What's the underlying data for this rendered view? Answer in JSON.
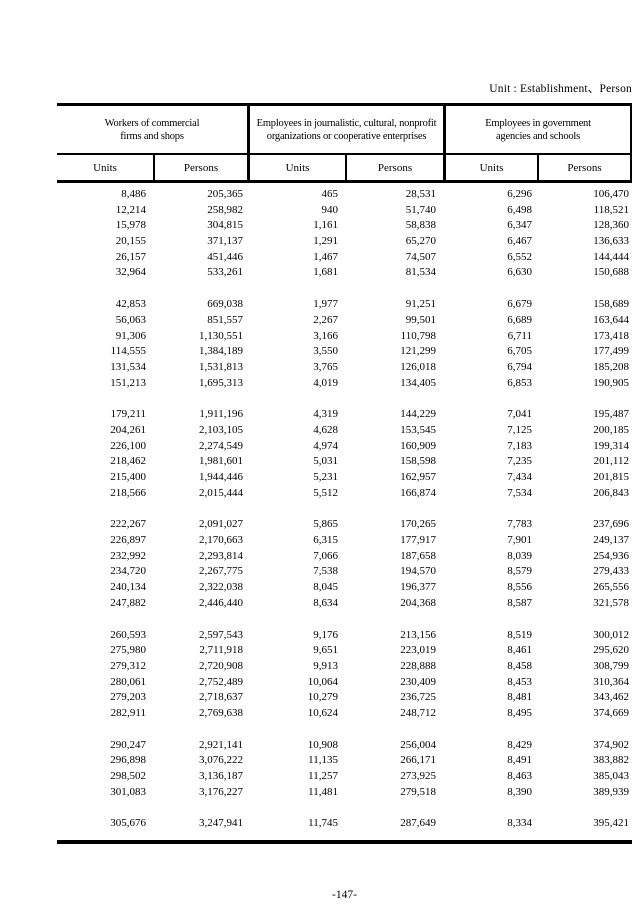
{
  "header": {
    "unit_note": "Unit : Establishment、Person"
  },
  "table": {
    "groups": [
      {
        "lines": [
          "Workers of commercial",
          "firms and shops"
        ]
      },
      {
        "lines": [
          "Employees in journalistic, cultural, nonprofit",
          "organizations or cooperative enterprises"
        ]
      },
      {
        "lines": [
          "Employees in government",
          "agencies and schools"
        ]
      }
    ],
    "subheaders": [
      "Units",
      "Persons",
      "Units",
      "Persons",
      "Units",
      "Persons"
    ],
    "row_groups": [
      [
        [
          "8,486",
          "205,365",
          "465",
          "28,531",
          "6,296",
          "106,470"
        ],
        [
          "12,214",
          "258,982",
          "940",
          "51,740",
          "6,498",
          "118,521"
        ],
        [
          "15,978",
          "304,815",
          "1,161",
          "58,838",
          "6,347",
          "128,360"
        ],
        [
          "20,155",
          "371,137",
          "1,291",
          "65,270",
          "6,467",
          "136,633"
        ],
        [
          "26,157",
          "451,446",
          "1,467",
          "74,507",
          "6,552",
          "144,444"
        ],
        [
          "32,964",
          "533,261",
          "1,681",
          "81,534",
          "6,630",
          "150,688"
        ]
      ],
      [
        [
          "42,853",
          "669,038",
          "1,977",
          "91,251",
          "6,679",
          "158,689"
        ],
        [
          "56,063",
          "851,557",
          "2,267",
          "99,501",
          "6,689",
          "163,644"
        ],
        [
          "91,306",
          "1,130,551",
          "3,166",
          "110,798",
          "6,711",
          "173,418"
        ],
        [
          "114,555",
          "1,384,189",
          "3,550",
          "121,299",
          "6,705",
          "177,499"
        ],
        [
          "131,534",
          "1,531,813",
          "3,765",
          "126,018",
          "6,794",
          "185,208"
        ],
        [
          "151,213",
          "1,695,313",
          "4,019",
          "134,405",
          "6,853",
          "190,905"
        ]
      ],
      [
        [
          "179,211",
          "1,911,196",
          "4,319",
          "144,229",
          "7,041",
          "195,487"
        ],
        [
          "204,261",
          "2,103,105",
          "4,628",
          "153,545",
          "7,125",
          "200,185"
        ],
        [
          "226,100",
          "2,274,549",
          "4,974",
          "160,909",
          "7,183",
          "199,314"
        ],
        [
          "218,462",
          "1,981,601",
          "5,031",
          "158,598",
          "7,235",
          "201,112"
        ],
        [
          "215,400",
          "1,944,446",
          "5,231",
          "162,957",
          "7,434",
          "201,815"
        ],
        [
          "218,566",
          "2,015,444",
          "5,512",
          "166,874",
          "7,534",
          "206,843"
        ]
      ],
      [
        [
          "222,267",
          "2,091,027",
          "5,865",
          "170,265",
          "7,783",
          "237,696"
        ],
        [
          "226,897",
          "2,170,663",
          "6,315",
          "177,917",
          "7,901",
          "249,137"
        ],
        [
          "232,992",
          "2,293,814",
          "7,066",
          "187,658",
          "8,039",
          "254,936"
        ],
        [
          "234,720",
          "2,267,775",
          "7,538",
          "194,570",
          "8,579",
          "279,433"
        ],
        [
          "240,134",
          "2,322,038",
          "8,045",
          "196,377",
          "8,556",
          "265,556"
        ],
        [
          "247,882",
          "2,446,440",
          "8,634",
          "204,368",
          "8,587",
          "321,578"
        ]
      ],
      [
        [
          "260,593",
          "2,597,543",
          "9,176",
          "213,156",
          "8,519",
          "300,012"
        ],
        [
          "275,980",
          "2,711,918",
          "9,651",
          "223,019",
          "8,461",
          "295,620"
        ],
        [
          "279,312",
          "2,720,908",
          "9,913",
          "228,888",
          "8,458",
          "308,799"
        ],
        [
          "280,061",
          "2,752,489",
          "10,064",
          "230,409",
          "8,453",
          "310,364"
        ],
        [
          "279,203",
          "2,718,637",
          "10,279",
          "236,725",
          "8,481",
          "343,462"
        ],
        [
          "282,911",
          "2,769,638",
          "10,624",
          "248,712",
          "8,495",
          "374,669"
        ]
      ],
      [
        [
          "290,247",
          "2,921,141",
          "10,908",
          "256,004",
          "8,429",
          "374,902"
        ],
        [
          "296,898",
          "3,076,222",
          "11,135",
          "266,171",
          "8,491",
          "383,882"
        ],
        [
          "298,502",
          "3,136,187",
          "11,257",
          "273,925",
          "8,463",
          "385,043"
        ],
        [
          "301,083",
          "3,176,227",
          "11,481",
          "279,518",
          "8,390",
          "389,939"
        ]
      ],
      [
        [
          "305,676",
          "3,247,941",
          "11,745",
          "287,649",
          "8,334",
          "395,421"
        ]
      ]
    ]
  },
  "footer": {
    "page_number": "-147-"
  }
}
